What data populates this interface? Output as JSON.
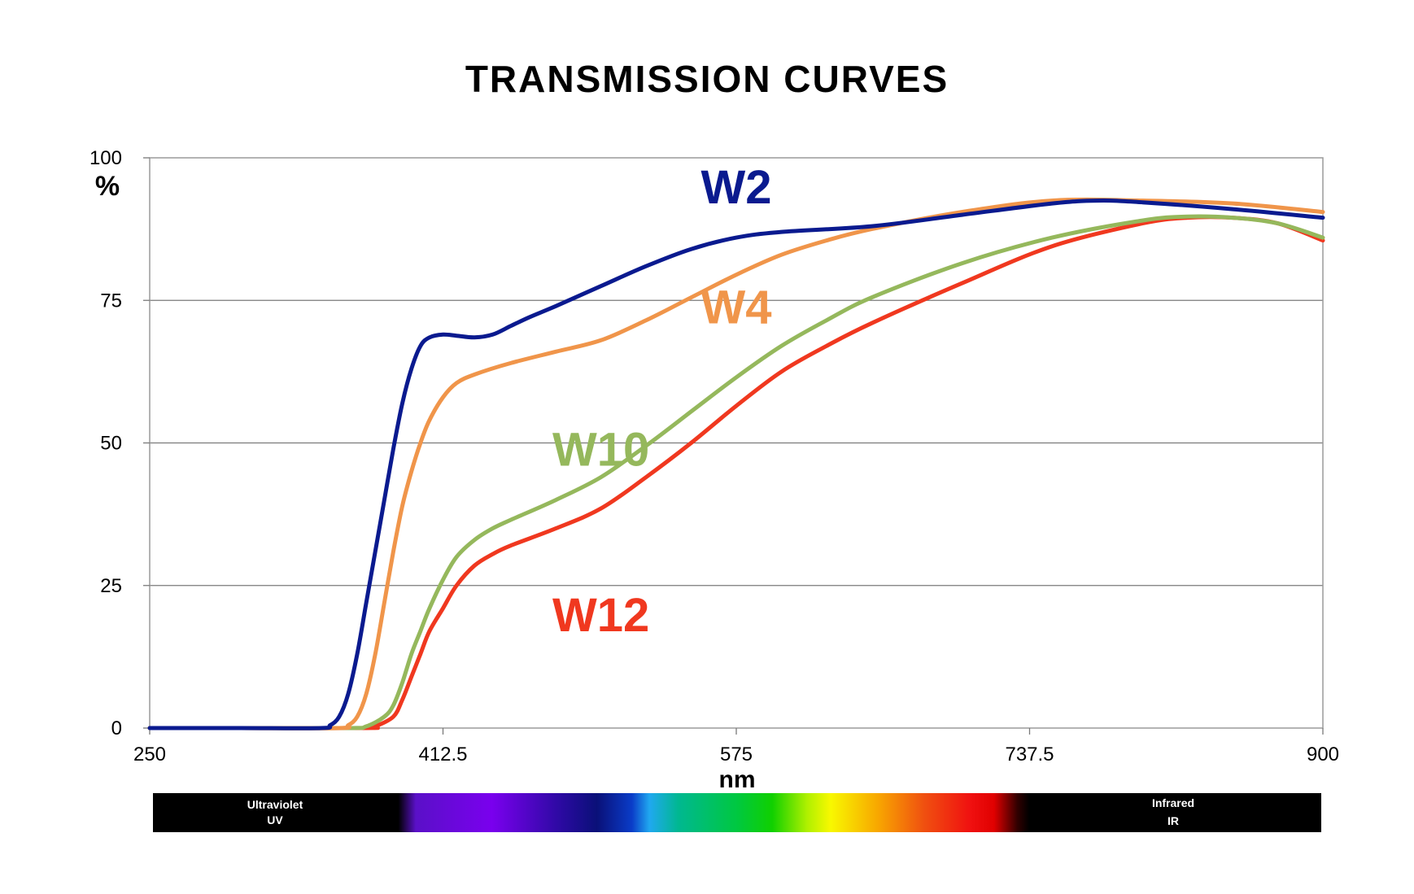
{
  "chart_data": {
    "type": "line",
    "title": "TRANSMISSION CURVES",
    "xlabel": "nm",
    "ylabel": "%",
    "xlim": [
      250,
      900
    ],
    "ylim": [
      0,
      100
    ],
    "x_ticks": [
      "250",
      "412.5",
      "575",
      "737.5",
      "900"
    ],
    "y_ticks": [
      "0",
      "25",
      "50",
      "75",
      "100"
    ],
    "grid": "horizontal",
    "series": [
      {
        "name": "W2",
        "color": "#0a1a8f",
        "points": [
          [
            250,
            0
          ],
          [
            300,
            0
          ],
          [
            345,
            0
          ],
          [
            350,
            0.5
          ],
          [
            355,
            2
          ],
          [
            360,
            6
          ],
          [
            365,
            13
          ],
          [
            370,
            22
          ],
          [
            375,
            31
          ],
          [
            380,
            40
          ],
          [
            385,
            49
          ],
          [
            390,
            57
          ],
          [
            395,
            63
          ],
          [
            400,
            67
          ],
          [
            405,
            68.5
          ],
          [
            412.5,
            69
          ],
          [
            420,
            68.8
          ],
          [
            430,
            68.5
          ],
          [
            440,
            69
          ],
          [
            450,
            70.5
          ],
          [
            460,
            72
          ],
          [
            475,
            74
          ],
          [
            500,
            77.5
          ],
          [
            525,
            81
          ],
          [
            550,
            84
          ],
          [
            575,
            86
          ],
          [
            600,
            87
          ],
          [
            650,
            88
          ],
          [
            700,
            90
          ],
          [
            750,
            92
          ],
          [
            775,
            92.5
          ],
          [
            800,
            92.2
          ],
          [
            850,
            91
          ],
          [
            900,
            89.5
          ]
        ]
      },
      {
        "name": "W4",
        "color": "#f0954a",
        "points": [
          [
            250,
            0
          ],
          [
            300,
            0
          ],
          [
            355,
            0
          ],
          [
            360,
            0.5
          ],
          [
            365,
            2
          ],
          [
            370,
            6
          ],
          [
            375,
            13
          ],
          [
            380,
            22
          ],
          [
            385,
            31
          ],
          [
            390,
            39
          ],
          [
            395,
            45
          ],
          [
            400,
            50
          ],
          [
            405,
            54
          ],
          [
            412.5,
            58
          ],
          [
            420,
            60.5
          ],
          [
            430,
            62
          ],
          [
            450,
            64
          ],
          [
            475,
            66
          ],
          [
            500,
            68
          ],
          [
            525,
            71.5
          ],
          [
            550,
            75.5
          ],
          [
            575,
            79.5
          ],
          [
            600,
            83
          ],
          [
            625,
            85.5
          ],
          [
            650,
            87.5
          ],
          [
            700,
            90.5
          ],
          [
            750,
            92.5
          ],
          [
            800,
            92.5
          ],
          [
            850,
            92
          ],
          [
            900,
            90.5
          ]
        ]
      },
      {
        "name": "W10",
        "color": "#95b85c",
        "points": [
          [
            250,
            0
          ],
          [
            300,
            0
          ],
          [
            360,
            0
          ],
          [
            370,
            0.3
          ],
          [
            380,
            2
          ],
          [
            385,
            4
          ],
          [
            390,
            8
          ],
          [
            395,
            13
          ],
          [
            400,
            17
          ],
          [
            405,
            21
          ],
          [
            412.5,
            26
          ],
          [
            420,
            30
          ],
          [
            430,
            33
          ],
          [
            440,
            35
          ],
          [
            450,
            36.5
          ],
          [
            475,
            40
          ],
          [
            500,
            44
          ],
          [
            525,
            49.5
          ],
          [
            550,
            55.5
          ],
          [
            575,
            61.5
          ],
          [
            600,
            67
          ],
          [
            625,
            71.5
          ],
          [
            650,
            75.5
          ],
          [
            700,
            81.5
          ],
          [
            750,
            86
          ],
          [
            800,
            89
          ],
          [
            825,
            89.7
          ],
          [
            850,
            89.5
          ],
          [
            875,
            88.5
          ],
          [
            900,
            86
          ]
        ]
      },
      {
        "name": "W12",
        "color": "#f0381f",
        "points": [
          [
            250,
            0
          ],
          [
            300,
            0
          ],
          [
            370,
            0
          ],
          [
            375,
            0.3
          ],
          [
            385,
            2
          ],
          [
            390,
            5
          ],
          [
            395,
            9
          ],
          [
            400,
            13
          ],
          [
            405,
            17
          ],
          [
            412.5,
            21
          ],
          [
            420,
            25
          ],
          [
            430,
            28.5
          ],
          [
            440,
            30.5
          ],
          [
            450,
            32
          ],
          [
            475,
            35
          ],
          [
            500,
            38.5
          ],
          [
            525,
            44
          ],
          [
            550,
            50
          ],
          [
            575,
            56.5
          ],
          [
            600,
            62.5
          ],
          [
            625,
            67
          ],
          [
            650,
            71
          ],
          [
            700,
            78
          ],
          [
            750,
            84.5
          ],
          [
            800,
            88.5
          ],
          [
            825,
            89.5
          ],
          [
            850,
            89.5
          ],
          [
            875,
            88.5
          ],
          [
            900,
            85.5
          ]
        ]
      }
    ],
    "series_labels": [
      {
        "text": "W2",
        "x": 575,
        "y": 92
      },
      {
        "text": "W4",
        "x": 575,
        "y": 71
      },
      {
        "text": "W10",
        "x": 500,
        "y": 46
      },
      {
        "text": "W12",
        "x": 500,
        "y": 17
      }
    ]
  },
  "spectrum_bar": {
    "left_label_line1": "Ultraviolet",
    "left_label_line2": "UV",
    "right_label_line1": "Infrared",
    "right_label_line2": "IR"
  }
}
